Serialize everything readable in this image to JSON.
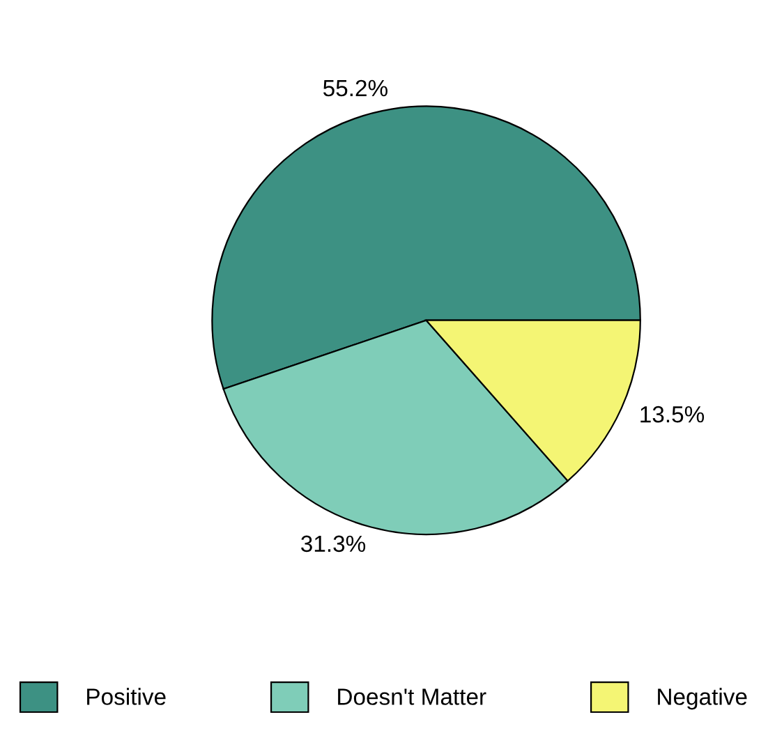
{
  "chart_data": {
    "type": "pie",
    "categories": [
      "Positive",
      "Doesn't Matter",
      "Negative"
    ],
    "values": [
      55.2,
      31.3,
      13.5
    ],
    "value_labels": [
      "55.2%",
      "31.3%",
      "13.5%"
    ],
    "colors": [
      "#3d9183",
      "#7fcdb8",
      "#f4f574"
    ],
    "legend": "bottom"
  }
}
